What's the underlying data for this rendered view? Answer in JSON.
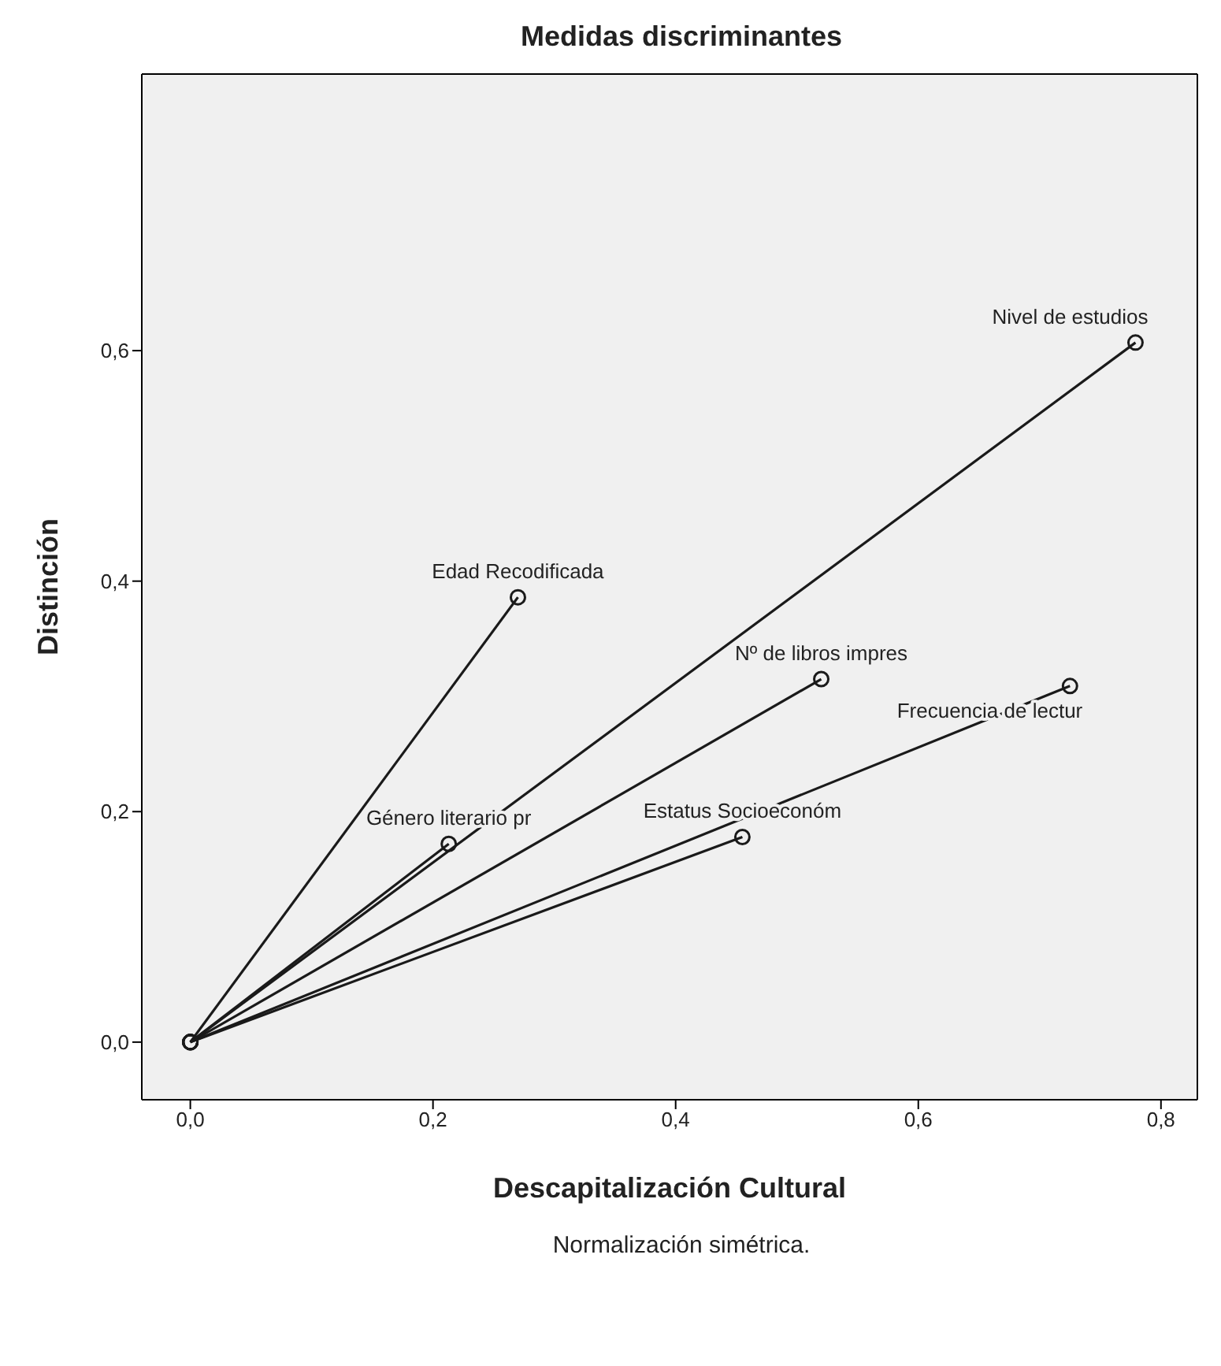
{
  "chart_data": {
    "type": "line",
    "title": "Medidas discriminantes",
    "xlabel": "Descapitalización Cultural",
    "ylabel": "Distinción",
    "annotations": [
      "Normalización simétrica."
    ],
    "marker": "circle",
    "line_style": "solid",
    "grid": false,
    "xlim": [
      -0.04,
      0.83
    ],
    "ylim": [
      -0.05,
      0.84
    ],
    "xticks": [
      {
        "value": 0,
        "label": "0,0"
      },
      {
        "value": 0.2,
        "label": "0,2"
      },
      {
        "value": 0.4,
        "label": "0,4"
      },
      {
        "value": 0.6,
        "label": "0,6"
      },
      {
        "value": 0.8,
        "label": "0,8"
      }
    ],
    "yticks": [
      {
        "value": 0,
        "label": "0,0"
      },
      {
        "value": 0.2,
        "label": "0,2"
      },
      {
        "value": 0.4,
        "label": "0,4"
      },
      {
        "value": 0.6,
        "label": "0,6"
      }
    ],
    "series": [
      {
        "name": "Nivel de estudios",
        "color": "#1a1a1a",
        "x": [
          0,
          0.779
        ],
        "values": [
          0,
          0.607
        ]
      },
      {
        "name": "Edad Recodificada",
        "color": "#1a1a1a",
        "x": [
          0,
          0.27
        ],
        "values": [
          0,
          0.386
        ]
      },
      {
        "name": "Nº de libros impres",
        "color": "#1a1a1a",
        "x": [
          0,
          0.52
        ],
        "values": [
          0,
          0.315
        ]
      },
      {
        "name": "Frecuencia de lectur",
        "color": "#1a1a1a",
        "x": [
          0,
          0.725
        ],
        "values": [
          0,
          0.309
        ]
      },
      {
        "name": "Estatus Socioeconóm",
        "color": "#1a1a1a",
        "x": [
          0,
          0.455
        ],
        "values": [
          0,
          0.178
        ]
      },
      {
        "name": "Género literario pr",
        "color": "#1a1a1a",
        "x": [
          0,
          0.213
        ],
        "values": [
          0,
          0.172
        ]
      }
    ]
  }
}
